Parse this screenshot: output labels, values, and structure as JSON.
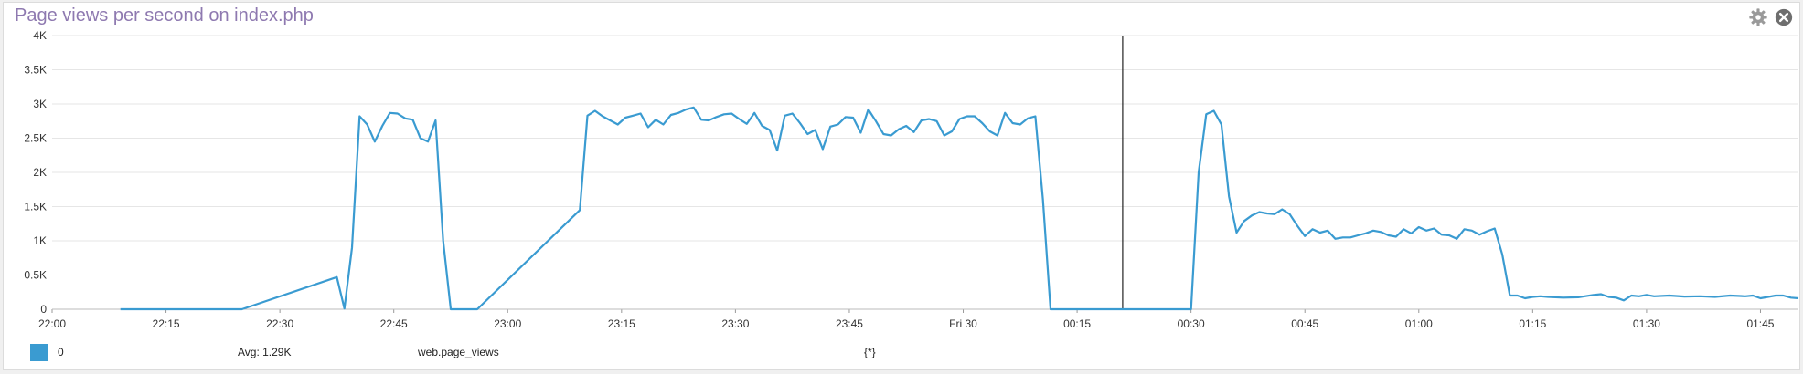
{
  "widget": {
    "title": "Page views per second on index.php",
    "icons": {
      "settings": "gear-icon",
      "close": "close-icon"
    }
  },
  "legend": {
    "series_label": "0",
    "avg": "Avg: 1.29K",
    "metric": "web.page_views",
    "scope": "{*}"
  },
  "colors": {
    "series": "#3a9bd1",
    "title": "#8e79b0",
    "grid": "#e6e6e6",
    "marker": "#222222"
  },
  "chart_data": {
    "type": "line",
    "y_ticks": [
      {
        "v": 0,
        "label": "0"
      },
      {
        "v": 500,
        "label": "0.5K"
      },
      {
        "v": 1000,
        "label": "1K"
      },
      {
        "v": 1500,
        "label": "1.5K"
      },
      {
        "v": 2000,
        "label": "2K"
      },
      {
        "v": 2500,
        "label": "2.5K"
      },
      {
        "v": 3000,
        "label": "3K"
      },
      {
        "v": 3500,
        "label": "3.5K"
      },
      {
        "v": 4000,
        "label": "4K"
      }
    ],
    "x_ticks": [
      {
        "t": 0,
        "label": "22:00"
      },
      {
        "t": 15,
        "label": "22:15"
      },
      {
        "t": 30,
        "label": "22:30"
      },
      {
        "t": 45,
        "label": "22:45"
      },
      {
        "t": 60,
        "label": "23:00"
      },
      {
        "t": 75,
        "label": "23:15"
      },
      {
        "t": 90,
        "label": "23:30"
      },
      {
        "t": 105,
        "label": "23:45"
      },
      {
        "t": 120,
        "label": "Fri 30"
      },
      {
        "t": 135,
        "label": "00:15"
      },
      {
        "t": 150,
        "label": "00:30"
      },
      {
        "t": 165,
        "label": "00:45"
      },
      {
        "t": 180,
        "label": "01:00"
      },
      {
        "t": 195,
        "label": "01:15"
      },
      {
        "t": 210,
        "label": "01:30"
      },
      {
        "t": 225,
        "label": "01:45"
      }
    ],
    "x_range": [
      0,
      230
    ],
    "y_range": [
      0,
      4000
    ],
    "marker_t": 141,
    "series": [
      {
        "name": "0",
        "points": [
          [
            9,
            0
          ],
          [
            25,
            0
          ],
          [
            37.5,
            470
          ],
          [
            38.5,
            10
          ],
          [
            39.5,
            900
          ],
          [
            40.5,
            2820
          ],
          [
            41.5,
            2700
          ],
          [
            42.5,
            2450
          ],
          [
            43.5,
            2680
          ],
          [
            44.5,
            2870
          ],
          [
            45.5,
            2860
          ],
          [
            46.5,
            2790
          ],
          [
            47.5,
            2770
          ],
          [
            48.5,
            2500
          ],
          [
            49.5,
            2450
          ],
          [
            50.5,
            2760
          ],
          [
            51.5,
            1000
          ],
          [
            52.5,
            0
          ],
          [
            56,
            0
          ],
          [
            69.5,
            1450
          ],
          [
            70.5,
            2830
          ],
          [
            71.5,
            2900
          ],
          [
            72.5,
            2820
          ],
          [
            73.5,
            2760
          ],
          [
            74.5,
            2700
          ],
          [
            75.5,
            2800
          ],
          [
            76.5,
            2830
          ],
          [
            77.5,
            2860
          ],
          [
            78.5,
            2660
          ],
          [
            79.5,
            2770
          ],
          [
            80.5,
            2700
          ],
          [
            81.5,
            2840
          ],
          [
            82.5,
            2870
          ],
          [
            83.5,
            2920
          ],
          [
            84.5,
            2950
          ],
          [
            85.5,
            2770
          ],
          [
            86.5,
            2760
          ],
          [
            87.5,
            2810
          ],
          [
            88.5,
            2850
          ],
          [
            89.5,
            2860
          ],
          [
            90.5,
            2780
          ],
          [
            91.5,
            2710
          ],
          [
            92.5,
            2870
          ],
          [
            93.5,
            2680
          ],
          [
            94.5,
            2620
          ],
          [
            95.5,
            2320
          ],
          [
            96.5,
            2830
          ],
          [
            97.5,
            2860
          ],
          [
            98.5,
            2720
          ],
          [
            99.5,
            2560
          ],
          [
            100.5,
            2620
          ],
          [
            101.5,
            2340
          ],
          [
            102.5,
            2670
          ],
          [
            103.5,
            2700
          ],
          [
            104.5,
            2810
          ],
          [
            105.5,
            2800
          ],
          [
            106.5,
            2580
          ],
          [
            107.5,
            2920
          ],
          [
            108.5,
            2750
          ],
          [
            109.5,
            2560
          ],
          [
            110.5,
            2540
          ],
          [
            111.5,
            2630
          ],
          [
            112.5,
            2680
          ],
          [
            113.5,
            2590
          ],
          [
            114.5,
            2760
          ],
          [
            115.5,
            2780
          ],
          [
            116.5,
            2750
          ],
          [
            117.5,
            2540
          ],
          [
            118.5,
            2600
          ],
          [
            119.5,
            2780
          ],
          [
            120.5,
            2820
          ],
          [
            121.5,
            2820
          ],
          [
            122.5,
            2720
          ],
          [
            123.5,
            2600
          ],
          [
            124.5,
            2540
          ],
          [
            125.5,
            2870
          ],
          [
            126.5,
            2720
          ],
          [
            127.5,
            2700
          ],
          [
            128.5,
            2790
          ],
          [
            129.5,
            2820
          ],
          [
            130.5,
            1600
          ],
          [
            131.5,
            0
          ],
          [
            150,
            0
          ],
          [
            151,
            2000
          ],
          [
            152,
            2850
          ],
          [
            153,
            2900
          ],
          [
            154,
            2700
          ],
          [
            155,
            1650
          ],
          [
            156,
            1120
          ],
          [
            157,
            1290
          ],
          [
            158,
            1370
          ],
          [
            159,
            1420
          ],
          [
            160,
            1400
          ],
          [
            161,
            1390
          ],
          [
            162,
            1460
          ],
          [
            163,
            1390
          ],
          [
            164,
            1220
          ],
          [
            165,
            1070
          ],
          [
            166,
            1170
          ],
          [
            167,
            1120
          ],
          [
            168,
            1150
          ],
          [
            169,
            1030
          ],
          [
            170,
            1050
          ],
          [
            171,
            1050
          ],
          [
            172,
            1080
          ],
          [
            173,
            1110
          ],
          [
            174,
            1150
          ],
          [
            175,
            1130
          ],
          [
            176,
            1080
          ],
          [
            177,
            1060
          ],
          [
            178,
            1170
          ],
          [
            179,
            1110
          ],
          [
            180,
            1200
          ],
          [
            181,
            1150
          ],
          [
            182,
            1180
          ],
          [
            183,
            1090
          ],
          [
            184,
            1080
          ],
          [
            185,
            1030
          ],
          [
            186,
            1170
          ],
          [
            187,
            1150
          ],
          [
            188,
            1090
          ],
          [
            189,
            1140
          ],
          [
            190,
            1180
          ],
          [
            191,
            800
          ],
          [
            192,
            200
          ],
          [
            193,
            200
          ],
          [
            194,
            160
          ],
          [
            195,
            180
          ],
          [
            196,
            190
          ],
          [
            197,
            180
          ],
          [
            199,
            170
          ],
          [
            201,
            175
          ],
          [
            203,
            210
          ],
          [
            204,
            220
          ],
          [
            205,
            180
          ],
          [
            206,
            170
          ],
          [
            207,
            130
          ],
          [
            208,
            200
          ],
          [
            209,
            190
          ],
          [
            210,
            210
          ],
          [
            211,
            190
          ],
          [
            213,
            200
          ],
          [
            215,
            185
          ],
          [
            217,
            190
          ],
          [
            219,
            180
          ],
          [
            221,
            200
          ],
          [
            223,
            190
          ],
          [
            224,
            200
          ],
          [
            225,
            160
          ],
          [
            226,
            180
          ],
          [
            227,
            200
          ],
          [
            228,
            200
          ],
          [
            229,
            170
          ],
          [
            230,
            160
          ]
        ]
      }
    ]
  }
}
